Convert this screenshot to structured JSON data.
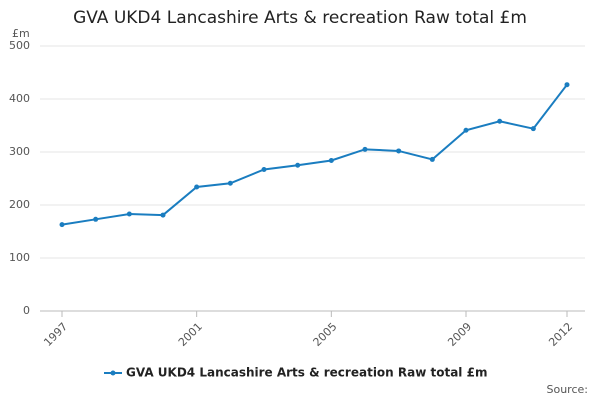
{
  "chart_data": {
    "type": "line",
    "title": "GVA UKD4 Lancashire Arts & recreation Raw total £m",
    "y_unit": "£m",
    "source": "Source:",
    "x": [
      1997,
      1998,
      1999,
      2000,
      2001,
      2002,
      2003,
      2004,
      2005,
      2006,
      2007,
      2008,
      2009,
      2010,
      2011,
      2012
    ],
    "series": [
      {
        "name": "GVA UKD4 Lancashire Arts & recreation Raw total £m",
        "color": "#1a7dc0",
        "values": [
          163,
          173,
          183,
          181,
          234,
          241,
          267,
          275,
          284,
          305,
          302,
          286,
          341,
          358,
          344,
          427
        ]
      }
    ],
    "xlim": [
      1997,
      2012
    ],
    "xticks": [
      1997,
      2001,
      2005,
      2009,
      2012
    ],
    "ylim": [
      0,
      500
    ],
    "yticks": [
      0,
      100,
      200,
      300,
      400,
      500
    ],
    "grid": true,
    "legend": "bottom"
  }
}
